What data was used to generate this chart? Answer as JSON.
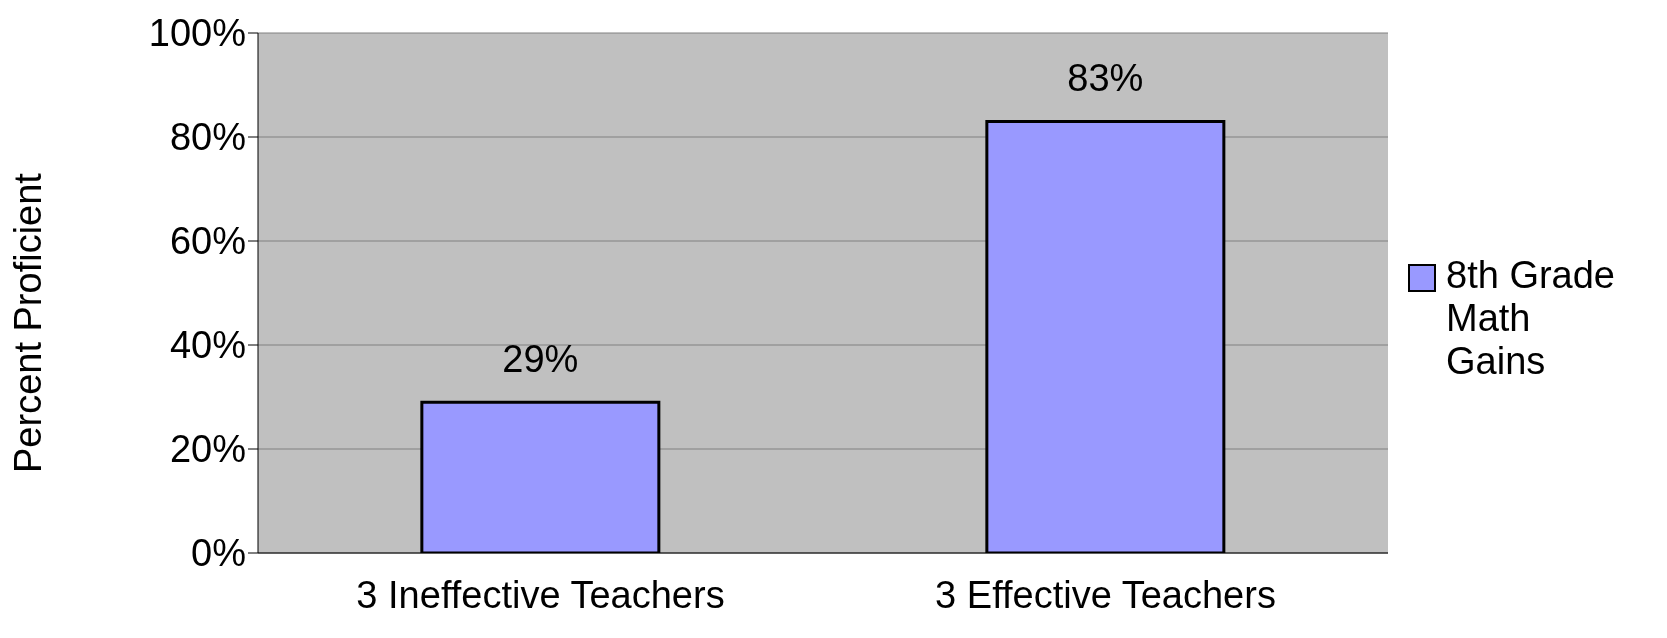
{
  "chart_data": {
    "type": "bar",
    "ylabel": "Percent Proficient",
    "categories": [
      "3 Ineffective Teachers",
      "3 Effective Teachers"
    ],
    "series": [
      {
        "name": "8th Grade Math Gains",
        "color": "#9999ff",
        "values": [
          29,
          83
        ],
        "value_labels": [
          "29%",
          "83%"
        ]
      }
    ],
    "ylim": [
      0,
      100
    ],
    "yticks": [
      {
        "value": 0,
        "label": "0%"
      },
      {
        "value": 20,
        "label": "20%"
      },
      {
        "value": 40,
        "label": "40%"
      },
      {
        "value": 60,
        "label": "60%"
      },
      {
        "value": 80,
        "label": "80%"
      },
      {
        "value": 100,
        "label": "100%"
      }
    ],
    "grid": "y",
    "legend": "right"
  }
}
